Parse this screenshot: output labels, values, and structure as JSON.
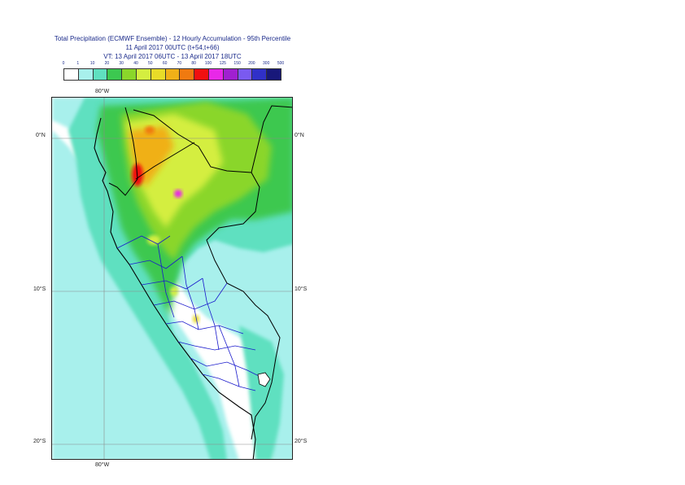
{
  "title": {
    "line1": "Total Precipitation (ECMWF Ensemble) - 12 Hourly Accumulation - 95th Percentile",
    "line2": "11 April 2017 00UTC (t+54,t+66)",
    "line3": "VT: 13 April 2017 06UTC - 13 April 2017 18UTC"
  },
  "legend": {
    "ticks": [
      "0",
      "1",
      "10",
      "20",
      "30",
      "40",
      "50",
      "60",
      "70",
      "80",
      "100",
      "125",
      "150",
      "200",
      "300",
      "500"
    ],
    "colors": [
      "#ffffff",
      "#a8f0ec",
      "#5fe0c0",
      "#3cc850",
      "#8ad62a",
      "#d4ee40",
      "#e8dc28",
      "#f0b018",
      "#f07a10",
      "#f01010",
      "#e828e8",
      "#a020d0",
      "#7a5af0",
      "#3030c8",
      "#18187a"
    ]
  },
  "map": {
    "lat_labels": [
      "0°N",
      "10°S",
      "20°S"
    ],
    "lon_labels": [
      "80°W",
      "80°W"
    ]
  }
}
